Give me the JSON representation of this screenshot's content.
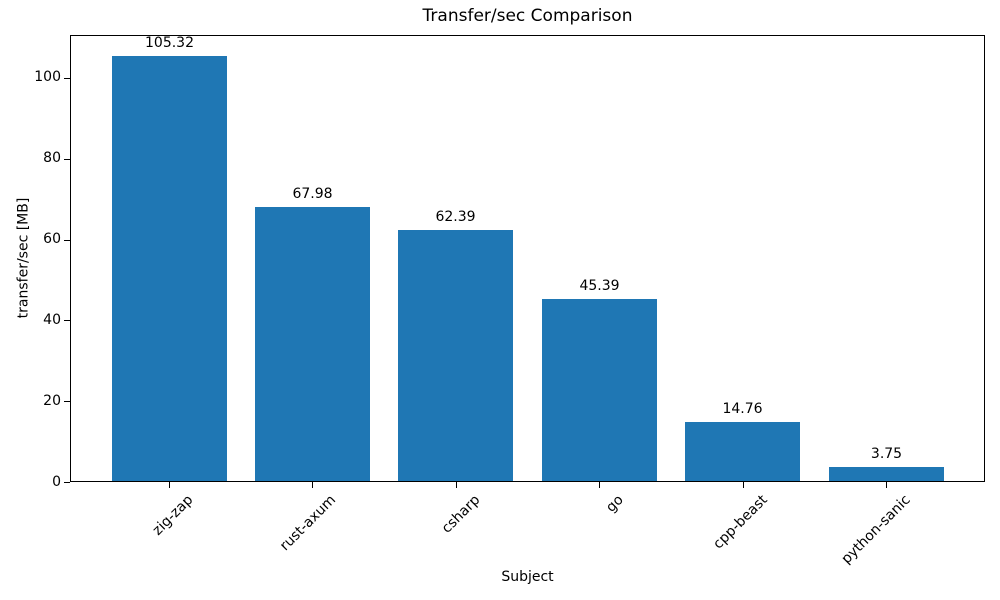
{
  "chart_data": {
    "type": "bar",
    "title": "Transfer/sec Comparison",
    "xlabel": "Subject",
    "ylabel": "transfer/sec [MB]",
    "categories": [
      "zig-zap",
      "rust-axum",
      "csharp",
      "go",
      "cpp-beast",
      "python-sanic"
    ],
    "values": [
      105.32,
      67.98,
      62.39,
      45.39,
      14.76,
      3.75
    ],
    "bar_value_labels": [
      "105.32",
      "67.98",
      "62.39",
      "45.39",
      "14.76",
      "3.75"
    ],
    "yticks": [
      0,
      20,
      40,
      60,
      80,
      100
    ],
    "ylim": [
      0,
      110.6
    ],
    "x_tick_rotation_deg": 45,
    "grid": false,
    "legend_position": "none",
    "bar_color": "#1f77b4",
    "axis_color": "#000000",
    "text_color": "#000000",
    "background_color": "#ffffff"
  }
}
